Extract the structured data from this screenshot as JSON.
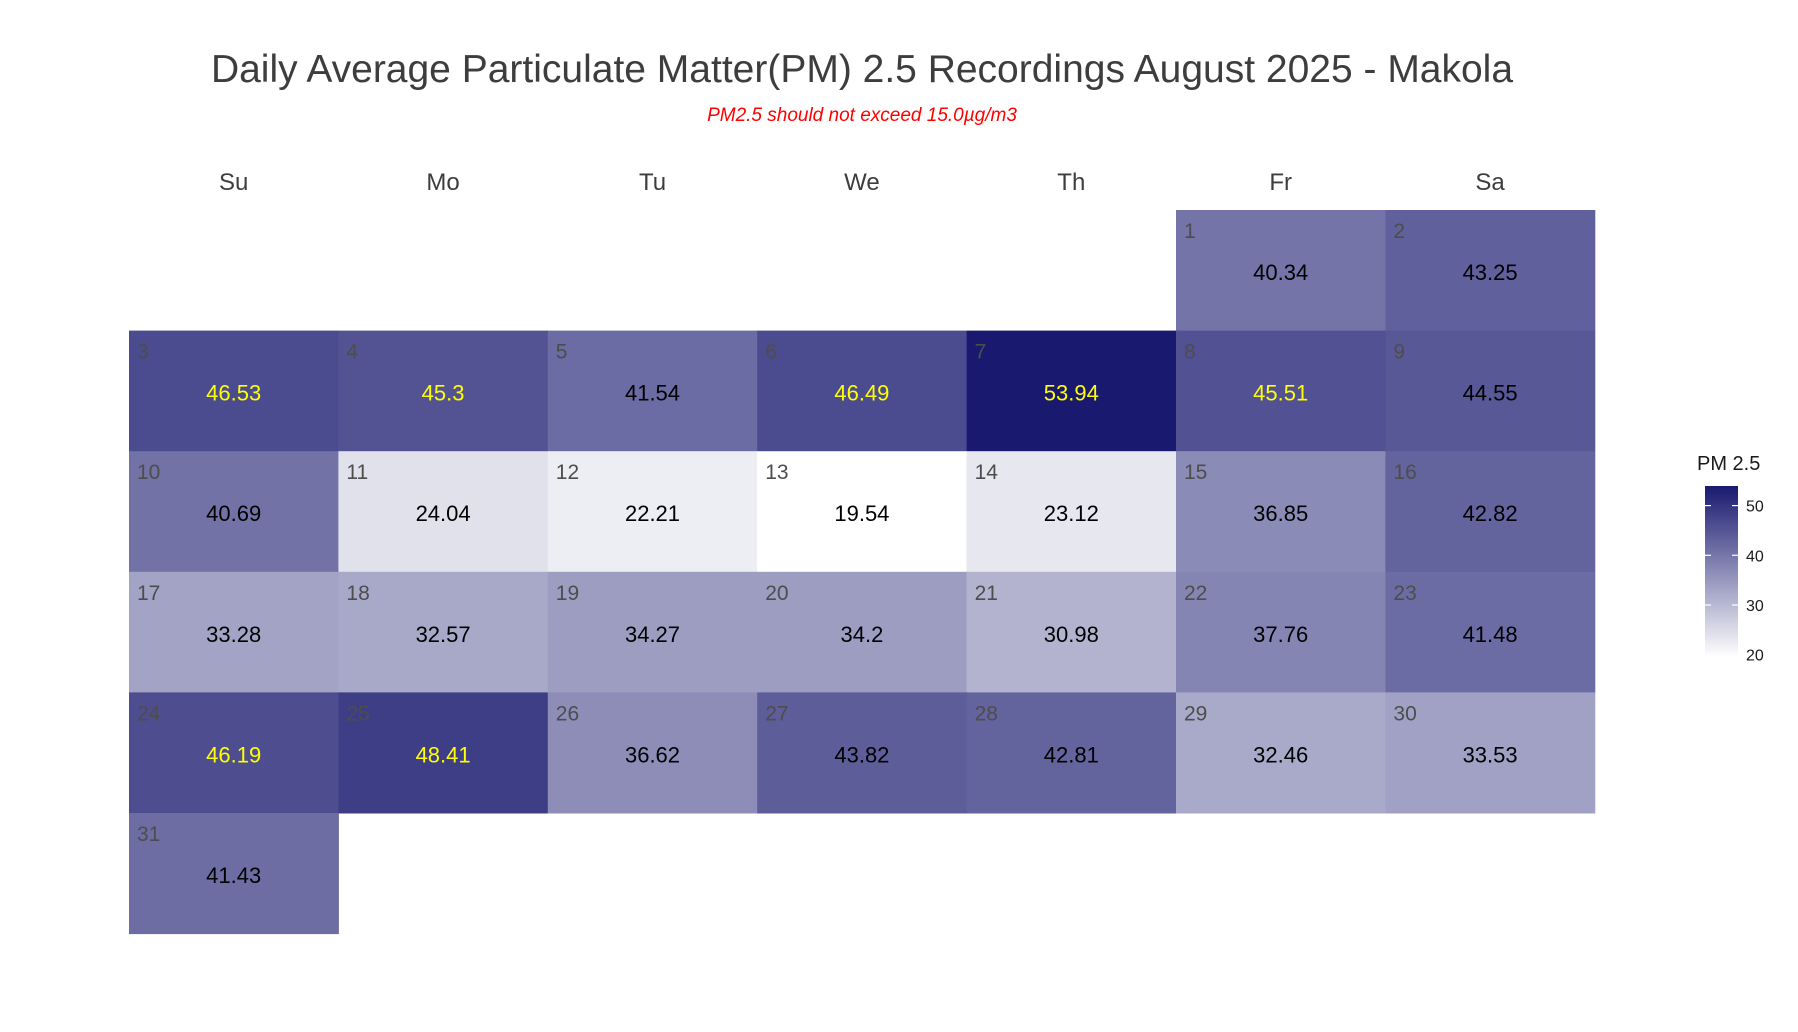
{
  "title": "Daily Average Particulate Matter(PM) 2.5 Recordings August 2025 -  Makola",
  "subtitle": "PM2.5 should not exceed 15.0µg/m3",
  "legend": {
    "title": "PM 2.5",
    "ticks": [
      50,
      40,
      30,
      20
    ],
    "min": 19.54,
    "max": 53.94,
    "color_low": "#ffffff",
    "color_high": "#191970"
  },
  "chart_data": {
    "type": "heatmap",
    "weekdays": [
      "Su",
      "Mo",
      "Tu",
      "We",
      "Th",
      "Fr",
      "Sa"
    ],
    "first_weekday_index": 5,
    "label_threshold": 44.8,
    "label_color_high": "#ffff00",
    "label_color_low": "#000000",
    "days": [
      {
        "day": "1",
        "value": 40.34,
        "label": "40.34"
      },
      {
        "day": "2",
        "value": 43.25,
        "label": "43.25"
      },
      {
        "day": "3",
        "value": 46.53,
        "label": "46.53"
      },
      {
        "day": "4",
        "value": 45.3,
        "label": "45.3"
      },
      {
        "day": "5",
        "value": 41.54,
        "label": "41.54"
      },
      {
        "day": "6",
        "value": 46.49,
        "label": "46.49"
      },
      {
        "day": "7",
        "value": 53.94,
        "label": "53.94"
      },
      {
        "day": "8",
        "value": 45.51,
        "label": "45.51"
      },
      {
        "day": "9",
        "value": 44.55,
        "label": "44.55"
      },
      {
        "day": "10",
        "value": 40.69,
        "label": "40.69"
      },
      {
        "day": "11",
        "value": 24.04,
        "label": "24.04"
      },
      {
        "day": "12",
        "value": 22.21,
        "label": "22.21"
      },
      {
        "day": "13",
        "value": 19.54,
        "label": "19.54"
      },
      {
        "day": "14",
        "value": 23.12,
        "label": "23.12"
      },
      {
        "day": "15",
        "value": 36.85,
        "label": "36.85"
      },
      {
        "day": "16",
        "value": 42.82,
        "label": "42.82"
      },
      {
        "day": "17",
        "value": 33.28,
        "label": "33.28"
      },
      {
        "day": "18",
        "value": 32.57,
        "label": "32.57"
      },
      {
        "day": "19",
        "value": 34.27,
        "label": "34.27"
      },
      {
        "day": "20",
        "value": 34.2,
        "label": "34.2"
      },
      {
        "day": "21",
        "value": 30.98,
        "label": "30.98"
      },
      {
        "day": "22",
        "value": 37.76,
        "label": "37.76"
      },
      {
        "day": "23",
        "value": 41.48,
        "label": "41.48"
      },
      {
        "day": "24",
        "value": 46.19,
        "label": "46.19"
      },
      {
        "day": "25",
        "value": 48.41,
        "label": "48.41"
      },
      {
        "day": "26",
        "value": 36.62,
        "label": "36.62"
      },
      {
        "day": "27",
        "value": 43.82,
        "label": "43.82"
      },
      {
        "day": "28",
        "value": 42.81,
        "label": "42.81"
      },
      {
        "day": "29",
        "value": 32.46,
        "label": "32.46"
      },
      {
        "day": "30",
        "value": 33.53,
        "label": "33.53"
      },
      {
        "day": "31",
        "value": 41.43,
        "label": "41.43"
      }
    ]
  }
}
